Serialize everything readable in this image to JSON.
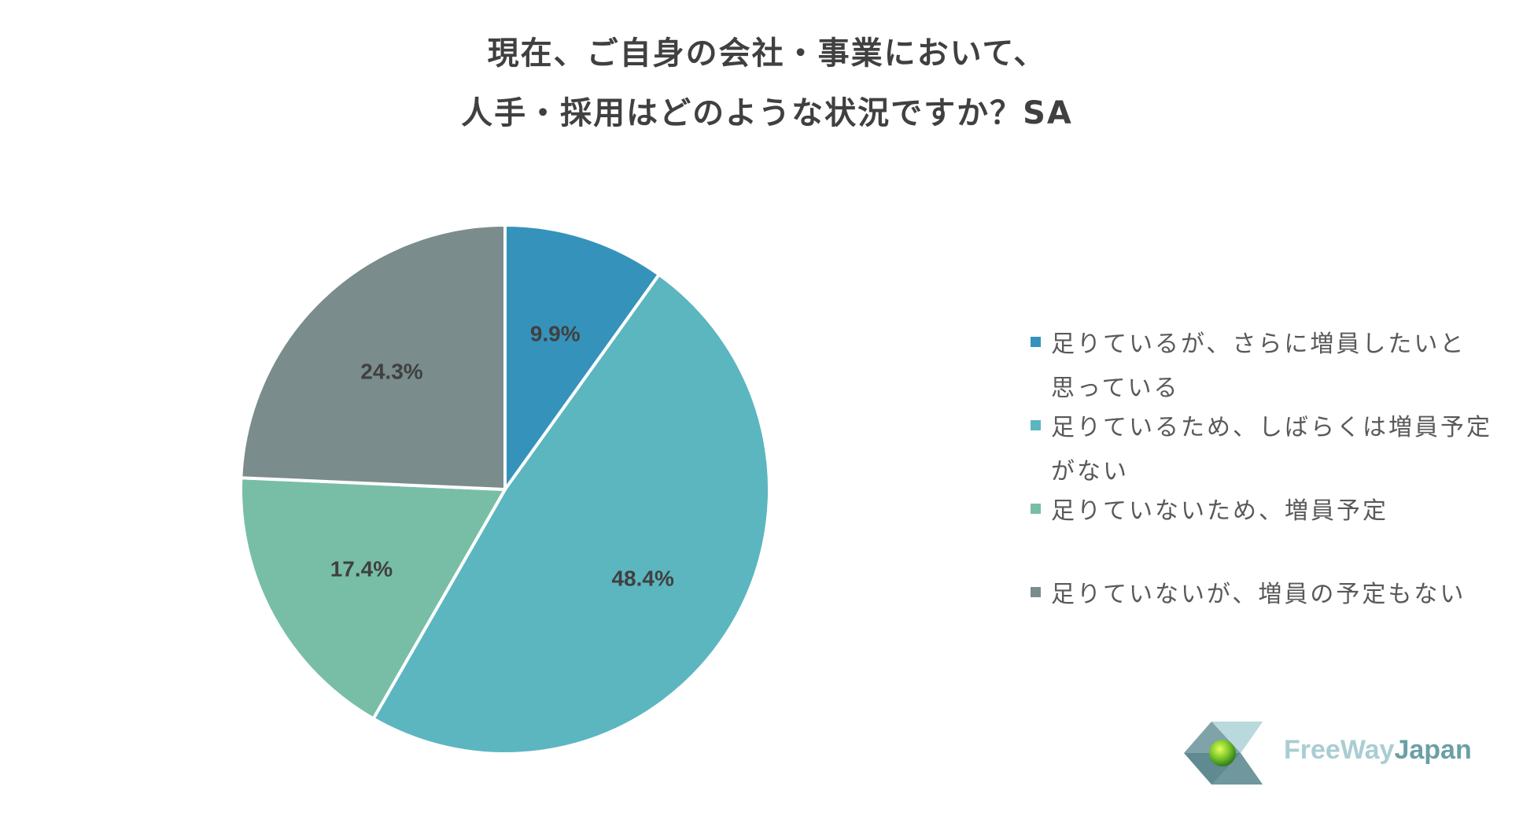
{
  "chart_data": {
    "type": "pie",
    "title": [
      "現在、ご自身の会社・事業において、",
      "人手・採用はどのような状況ですか？SA"
    ],
    "slices": [
      {
        "label": "足りているが、さらに増員したいと思っている",
        "value": 9.9,
        "display": "9.9%",
        "color": "#3593bb"
      },
      {
        "label": "足りているため、しばらくは増員予定がない",
        "value": 48.4,
        "display": "48.4%",
        "color": "#5bb6c0"
      },
      {
        "label": "足りていないため、増員予定",
        "value": 17.4,
        "display": "17.4%",
        "color": "#78bea6"
      },
      {
        "label": "足りていないが、増員の予定もない",
        "value": 24.3,
        "display": "24.3%",
        "color": "#7a8c8c"
      }
    ],
    "legend_position": "right"
  },
  "legend": {
    "items": [
      {
        "line1": "足りているが、さらに増員したいと",
        "line2": "思っている"
      },
      {
        "line1": "足りているため、しばらくは増員予定",
        "line2": "がない"
      },
      {
        "line1": "足りていないため、増員予定",
        "line2": ""
      },
      {
        "line1": "足りていないが、増員の予定もない",
        "line2": ""
      }
    ]
  },
  "logo": {
    "part1": "FreeWay",
    "part2": "Japan"
  }
}
